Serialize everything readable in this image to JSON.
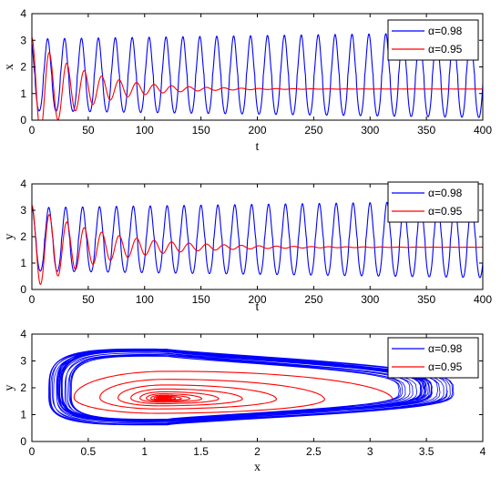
{
  "colors": {
    "blue": "#0000ff",
    "red": "#ff0000",
    "axis": "#000000"
  },
  "chart_data": [
    {
      "type": "line",
      "title": "",
      "xlabel": "t",
      "ylabel": "x",
      "xlim": [
        0,
        400
      ],
      "ylim": [
        0,
        4
      ],
      "xticks": [
        "0",
        "50",
        "100",
        "150",
        "200",
        "250",
        "300",
        "350",
        "400"
      ],
      "yticks": [
        "0",
        "1",
        "2",
        "3",
        "4"
      ],
      "grid": false,
      "legend_position": "top-right",
      "series": [
        {
          "name": "α=0.98",
          "color": "#0000ff",
          "oscillation": {
            "center": 1.7,
            "amplitude_start": 1.35,
            "amplitude_end": 1.6,
            "period": 15,
            "peak_lead": 1.0,
            "x_start": 0,
            "x_end": 400
          }
        },
        {
          "name": "α=0.95",
          "color": "#ff0000",
          "damped_oscillation": {
            "equilibrium": 1.17,
            "initial": 3.1,
            "decay_time": 45,
            "period": 15.5,
            "x_start": 0,
            "x_end": 400
          }
        }
      ]
    },
    {
      "type": "line",
      "title": "",
      "xlabel": "t",
      "ylabel": "y",
      "xlim": [
        0,
        400
      ],
      "ylim": [
        0,
        4
      ],
      "xticks": [
        "0",
        "50",
        "100",
        "150",
        "200",
        "250",
        "300",
        "350",
        "400"
      ],
      "yticks": [
        "0",
        "1",
        "2",
        "3",
        "4"
      ],
      "grid": false,
      "legend_position": "top-right",
      "series": [
        {
          "name": "α=0.98",
          "color": "#0000ff",
          "oscillation": {
            "center": 1.9,
            "amplitude_start": 1.2,
            "amplitude_end": 1.45,
            "period": 15,
            "peak_lead": 0,
            "x_start": 0,
            "x_end": 400
          }
        },
        {
          "name": "α=0.95",
          "color": "#ff0000",
          "damped_oscillation": {
            "equilibrium": 1.6,
            "initial": 3.2,
            "decay_time": 60,
            "period": 15.5,
            "x_start": 0,
            "x_end": 400
          }
        }
      ]
    },
    {
      "type": "line",
      "subtype": "phase-portrait",
      "title": "",
      "xlabel": "x",
      "ylabel": "y",
      "xlim": [
        0,
        4
      ],
      "ylim": [
        0,
        4
      ],
      "xticks": [
        "0",
        "0.5",
        "1",
        "1.5",
        "2",
        "2.5",
        "3",
        "3.5",
        "4"
      ],
      "yticks": [
        "0",
        "1",
        "2",
        "3",
        "4"
      ],
      "grid": false,
      "legend_position": "top-right",
      "series": [
        {
          "name": "α=0.98",
          "color": "#0000ff",
          "limit_cycle": {
            "x_range": [
              0.25,
              3.5
            ],
            "y_range": [
              0.75,
              3.35
            ],
            "center": [
              1.2,
              1.9
            ],
            "loops": 28,
            "spread": 0.12
          }
        },
        {
          "name": "α=0.95",
          "color": "#ff0000",
          "inward_spiral": {
            "start": [
              3.2,
              1.9
            ],
            "equilibrium": [
              1.15,
              1.6
            ],
            "radius_x_start": 2.05,
            "radius_y_start": 1.3,
            "turns": 12
          }
        }
      ]
    }
  ]
}
